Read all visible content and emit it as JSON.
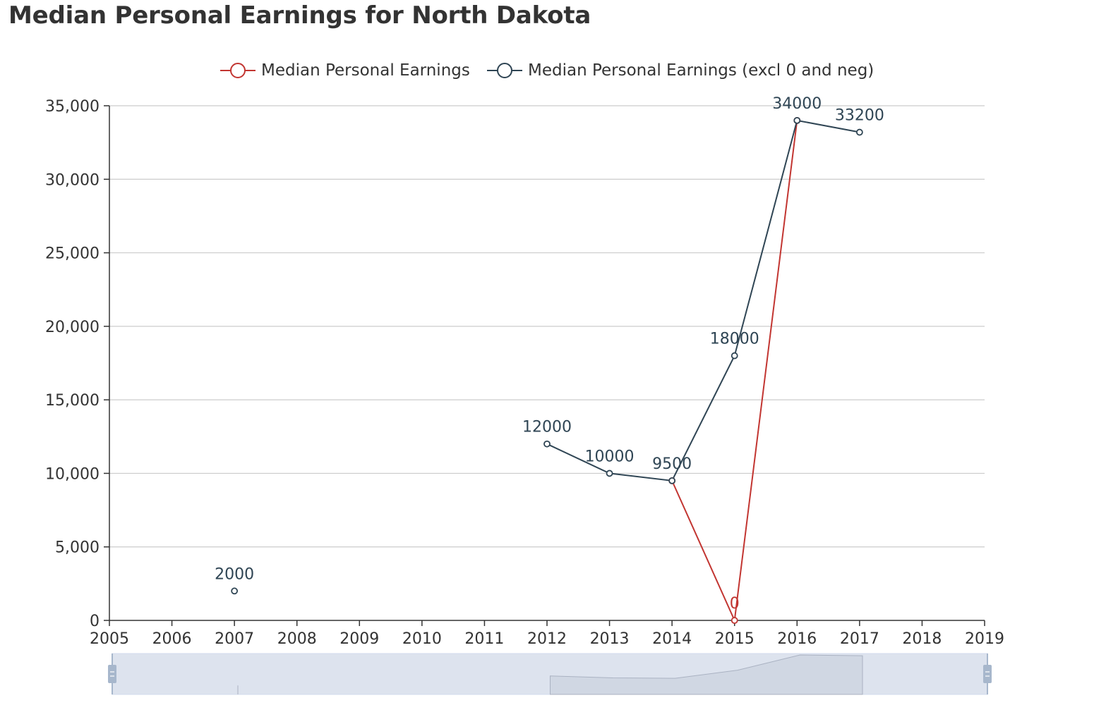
{
  "chart_data": {
    "type": "line",
    "title": "Median Personal Earnings for North Dakota",
    "xlabel": "",
    "ylabel": "",
    "x": [
      2005,
      2006,
      2007,
      2008,
      2009,
      2010,
      2011,
      2012,
      2013,
      2014,
      2015,
      2016,
      2017,
      2018,
      2019
    ],
    "xlim": [
      2005,
      2019
    ],
    "ylim": [
      0,
      35000
    ],
    "yticks": [
      0,
      5000,
      10000,
      15000,
      20000,
      25000,
      30000,
      35000
    ],
    "ytick_labels": [
      "0",
      "5,000",
      "10,000",
      "15,000",
      "20,000",
      "25,000",
      "30,000",
      "35,000"
    ],
    "grid": true,
    "legend_position": "top-center",
    "series": [
      {
        "name": "Median Personal Earnings",
        "color": "#c23531",
        "points": [
          [
            2014,
            9500
          ],
          [
            2015,
            0
          ],
          [
            2016,
            34000
          ]
        ],
        "labels": [
          {
            "x": 2015,
            "y": 0,
            "text": "0"
          }
        ]
      },
      {
        "name": "Median Personal Earnings (excl 0 and neg)",
        "color": "#2f4554",
        "points": [
          [
            2007,
            2000
          ],
          [
            2012,
            12000
          ],
          [
            2013,
            10000
          ],
          [
            2014,
            9500
          ],
          [
            2015,
            18000
          ],
          [
            2016,
            34000
          ],
          [
            2017,
            33200
          ]
        ],
        "segments": [
          [
            [
              2007,
              2000
            ]
          ],
          [
            [
              2012,
              12000
            ],
            [
              2013,
              10000
            ],
            [
              2014,
              9500
            ],
            [
              2015,
              18000
            ],
            [
              2016,
              34000
            ],
            [
              2017,
              33200
            ]
          ]
        ],
        "labels": [
          {
            "x": 2007,
            "y": 2000,
            "text": "2000"
          },
          {
            "x": 2012,
            "y": 12000,
            "text": "12000"
          },
          {
            "x": 2013,
            "y": 10000,
            "text": "10000"
          },
          {
            "x": 2014,
            "y": 9500,
            "text": "9500"
          },
          {
            "x": 2015,
            "y": 18000,
            "text": "18000"
          },
          {
            "x": 2016,
            "y": 34000,
            "text": "34000"
          },
          {
            "x": 2017,
            "y": 33200,
            "text": "33200"
          }
        ]
      }
    ],
    "datazoom": {
      "start": 2005,
      "end": 2019
    }
  }
}
